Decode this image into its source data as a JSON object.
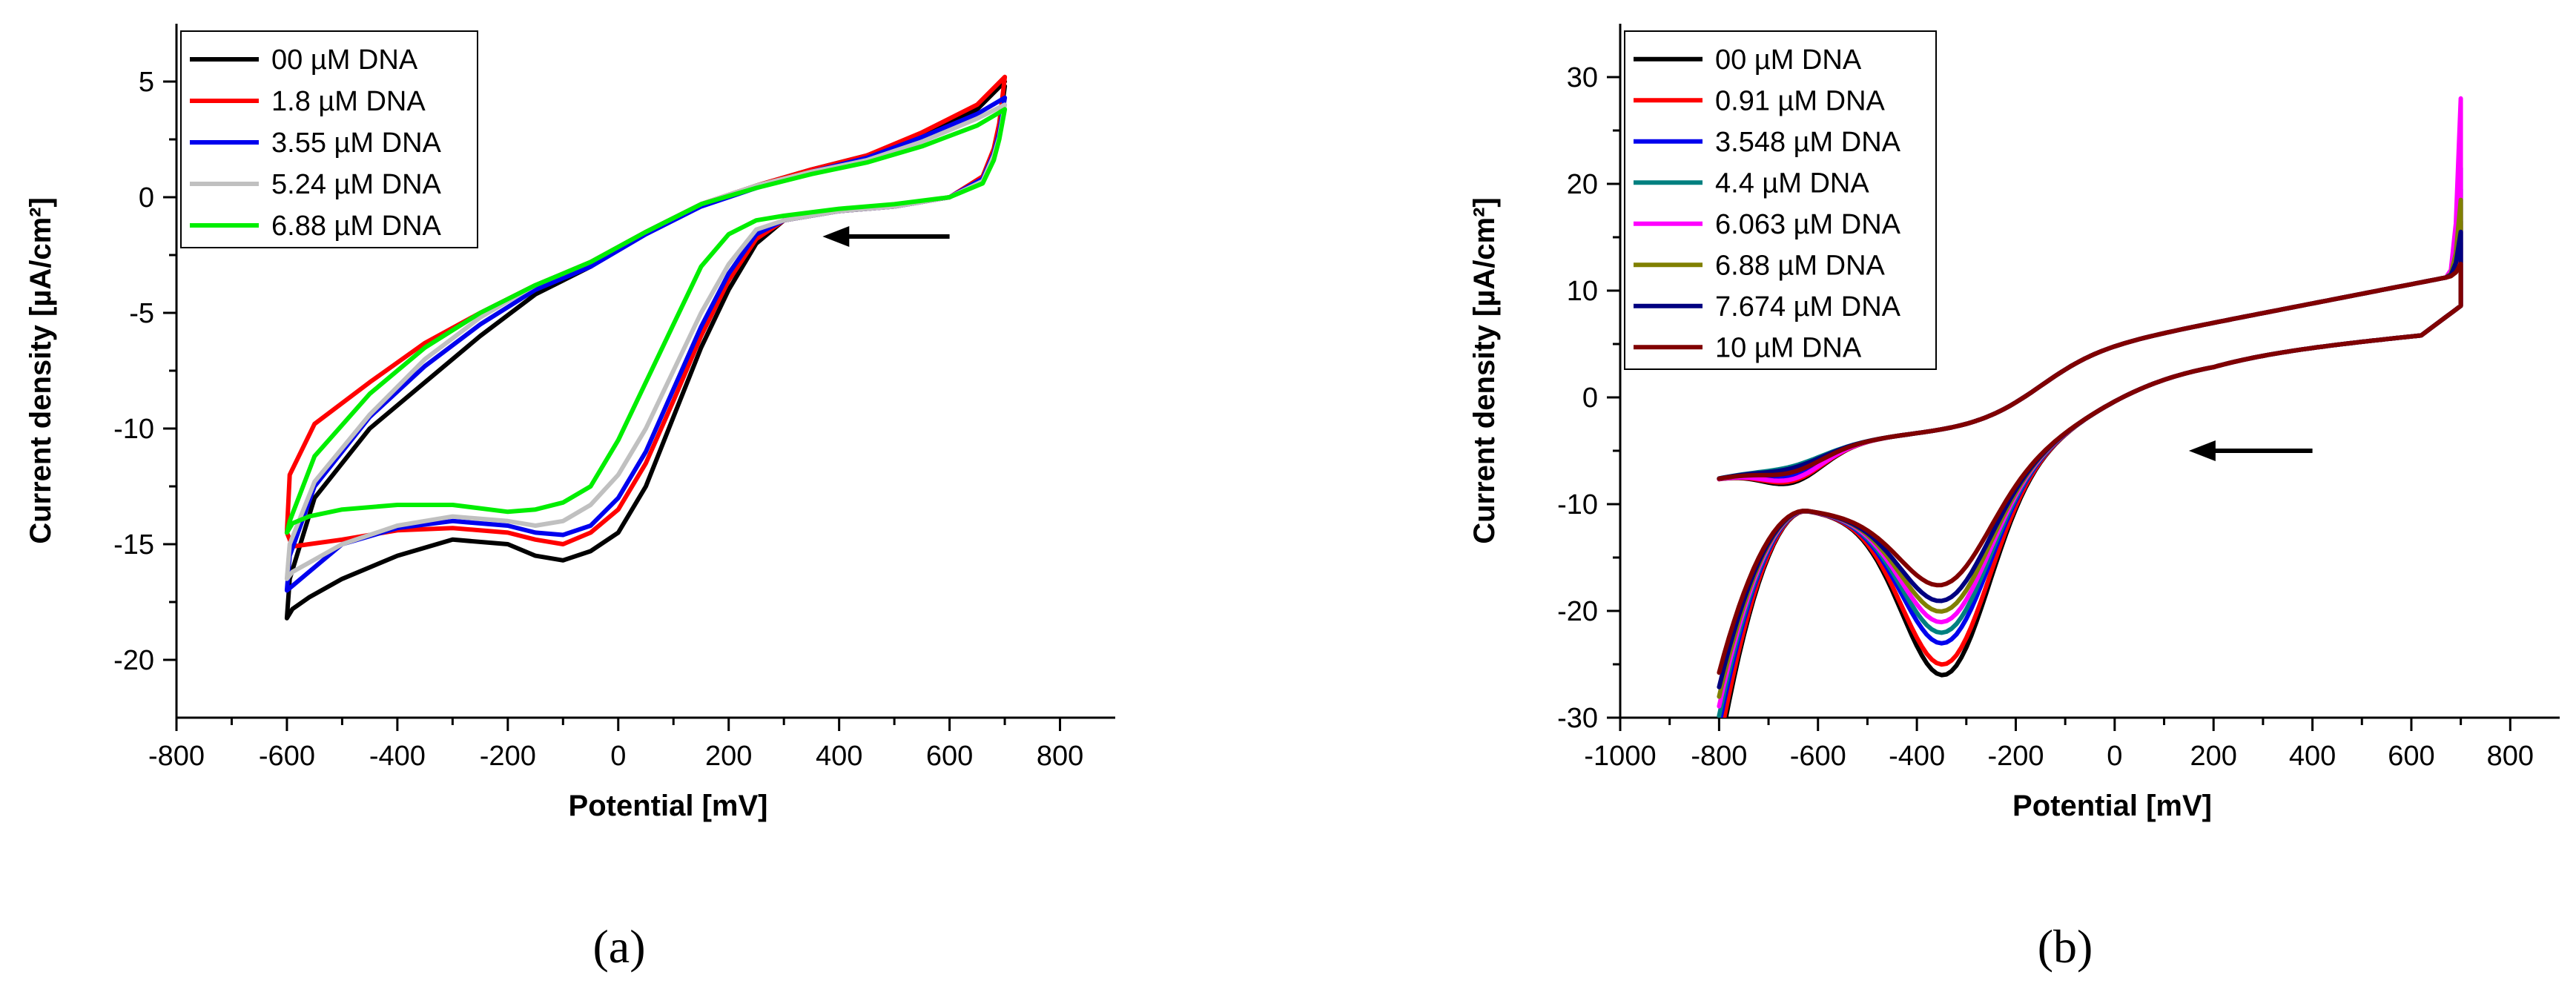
{
  "chart_data": [
    {
      "type": "line",
      "panel_label": "(a)",
      "xlabel": "Potential [mV]",
      "ylabel": "Current density [µA/cm²]",
      "xlim": [
        -800,
        900
      ],
      "ylim": [
        -22.5,
        7.5
      ],
      "xticks": [
        -800,
        -600,
        -400,
        -200,
        0,
        200,
        400,
        600,
        800
      ],
      "xtick_labels": [
        "-800",
        "-600",
        "-400",
        "-200",
        "0",
        "200",
        "400",
        "600",
        "800"
      ],
      "yticks": [
        -20,
        -15,
        -10,
        -5,
        0,
        5
      ],
      "ytick_labels": [
        "-20",
        "-15",
        "-10",
        "-5",
        "0",
        "5"
      ],
      "legend_position": "top-left",
      "arrow_direction": "left",
      "series": [
        {
          "name": "00 µM DNA",
          "color": "#000000",
          "x": [
            700,
            690,
            680,
            660,
            600,
            500,
            400,
            300,
            250,
            200,
            150,
            100,
            50,
            0,
            -50,
            -100,
            -150,
            -200,
            -300,
            -400,
            -500,
            -560,
            -590,
            -600,
            -595,
            -550,
            -450,
            -350,
            -250,
            -150,
            -50,
            50,
            150,
            250,
            350,
            450,
            550,
            650,
            700
          ],
          "y": [
            4.8,
            3,
            2,
            0.8,
            0,
            -0.4,
            -0.6,
            -1,
            -2,
            -4,
            -6.5,
            -9.5,
            -12.5,
            -14.5,
            -15.3,
            -15.7,
            -15.5,
            -15,
            -14.8,
            -15.5,
            -16.5,
            -17.3,
            -17.8,
            -18.2,
            -16.5,
            -13,
            -10,
            -8,
            -6,
            -4.2,
            -3,
            -1.5,
            -0.3,
            0.5,
            1.2,
            1.8,
            2.7,
            3.8,
            5
          ]
        },
        {
          "name": "1.8 µM DNA",
          "color": "#ff0000",
          "x": [
            700,
            690,
            680,
            660,
            600,
            500,
            400,
            300,
            250,
            200,
            150,
            100,
            50,
            0,
            -50,
            -100,
            -150,
            -200,
            -300,
            -400,
            -500,
            -560,
            -590,
            -600,
            -595,
            -550,
            -450,
            -350,
            -250,
            -150,
            -50,
            50,
            150,
            250,
            350,
            450,
            550,
            650,
            700
          ],
          "y": [
            5.2,
            3.2,
            2.1,
            0.9,
            0,
            -0.4,
            -0.6,
            -1,
            -1.8,
            -3.6,
            -6,
            -8.8,
            -11.5,
            -13.5,
            -14.5,
            -15,
            -14.8,
            -14.5,
            -14.3,
            -14.4,
            -14.8,
            -15,
            -15.1,
            -14.5,
            -12,
            -9.8,
            -8,
            -6.3,
            -5,
            -3.8,
            -2.8,
            -1.5,
            -0.3,
            0.5,
            1.2,
            1.8,
            2.8,
            4,
            5.2
          ]
        },
        {
          "name": "3.55 µM DNA",
          "color": "#0000ee",
          "x": [
            700,
            690,
            680,
            660,
            600,
            500,
            400,
            300,
            250,
            200,
            150,
            100,
            50,
            0,
            -50,
            -100,
            -150,
            -200,
            -300,
            -400,
            -500,
            -560,
            -590,
            -600,
            -595,
            -550,
            -450,
            -350,
            -250,
            -150,
            -50,
            50,
            150,
            250,
            350,
            450,
            550,
            650,
            700
          ],
          "y": [
            4.3,
            2.8,
            1.9,
            0.8,
            0,
            -0.4,
            -0.6,
            -1,
            -1.6,
            -3.3,
            -5.6,
            -8.3,
            -11,
            -13,
            -14.2,
            -14.6,
            -14.5,
            -14.2,
            -14,
            -14.3,
            -15,
            -16.2,
            -16.8,
            -17,
            -15.5,
            -12.5,
            -9.5,
            -7.3,
            -5.5,
            -4,
            -3,
            -1.6,
            -0.4,
            0.4,
            1.1,
            1.7,
            2.6,
            3.6,
            4.3
          ]
        },
        {
          "name": "5.24 µM DNA",
          "color": "#c0c0c0",
          "x": [
            700,
            690,
            680,
            660,
            600,
            500,
            400,
            300,
            250,
            200,
            150,
            100,
            50,
            0,
            -50,
            -100,
            -150,
            -200,
            -300,
            -400,
            -500,
            -560,
            -590,
            -600,
            -595,
            -550,
            -450,
            -350,
            -250,
            -150,
            -50,
            50,
            150,
            250,
            350,
            450,
            550,
            650,
            700
          ],
          "y": [
            4,
            2.6,
            1.8,
            0.7,
            0,
            -0.4,
            -0.6,
            -1,
            -1.4,
            -2.9,
            -5,
            -7.5,
            -10,
            -12,
            -13.3,
            -14,
            -14.2,
            -14,
            -13.8,
            -14.2,
            -15,
            -15.8,
            -16.2,
            -16.5,
            -15,
            -12.3,
            -9.4,
            -7,
            -5.2,
            -3.8,
            -2.8,
            -1.5,
            -0.3,
            0.5,
            1.1,
            1.6,
            2.4,
            3.4,
            4
          ]
        },
        {
          "name": "6.88 µM DNA",
          "color": "#00ee00",
          "x": [
            700,
            690,
            680,
            660,
            600,
            500,
            400,
            300,
            250,
            200,
            150,
            100,
            50,
            0,
            -50,
            -100,
            -150,
            -200,
            -300,
            -400,
            -500,
            -560,
            -590,
            -600,
            -595,
            -550,
            -450,
            -350,
            -250,
            -150,
            -50,
            50,
            150,
            250,
            350,
            450,
            550,
            650,
            700
          ],
          "y": [
            3.8,
            2.5,
            1.6,
            0.6,
            0,
            -0.3,
            -0.5,
            -0.8,
            -1,
            -1.6,
            -3,
            -5.5,
            -8,
            -10.5,
            -12.5,
            -13.2,
            -13.5,
            -13.6,
            -13.3,
            -13.3,
            -13.5,
            -13.8,
            -14.1,
            -14.5,
            -14,
            -11.2,
            -8.5,
            -6.5,
            -5,
            -3.8,
            -2.8,
            -1.5,
            -0.3,
            0.4,
            1,
            1.5,
            2.2,
            3.1,
            3.8
          ]
        }
      ]
    },
    {
      "type": "line",
      "panel_label": "(b)",
      "xlabel": "Potential [mV]",
      "ylabel": "Current density [µA/cm²]",
      "xlim": [
        -1000,
        900
      ],
      "ylim": [
        -30,
        35
      ],
      "xticks": [
        -1000,
        -800,
        -600,
        -400,
        -200,
        0,
        200,
        400,
        600,
        800
      ],
      "xtick_labels": [
        "-1000",
        "-800",
        "-600",
        "-400",
        "-200",
        "0",
        "200",
        "400",
        "600",
        "800"
      ],
      "yticks": [
        -30,
        -20,
        -10,
        0,
        10,
        20,
        30
      ],
      "ytick_labels": [
        "-30",
        "-20",
        "-10",
        "0",
        "10",
        "20",
        "30"
      ],
      "legend_position": "top-left",
      "arrow_direction": "left",
      "series": [
        {
          "name": "00 µM DNA",
          "color": "#000000",
          "peak": 26,
          "return_min": 3.8,
          "spike": 16
        },
        {
          "name": "0.91 µM DNA",
          "color": "#ff0000",
          "peak": 25,
          "return_min": 3.5,
          "spike": 14
        },
        {
          "name": "3.548 µM DNA",
          "color": "#0000ee",
          "peak": 23,
          "return_min": 2.5,
          "spike": 21
        },
        {
          "name": "4.4 µM DNA",
          "color": "#008080",
          "peak": 22,
          "return_min": 1,
          "spike": 19
        },
        {
          "name": "6.063 µM DNA",
          "color": "#ff00ff",
          "peak": 21,
          "return_min": 3.2,
          "spike": 27.5
        },
        {
          "name": "6.88 µM DNA",
          "color": "#808000",
          "peak": 20,
          "return_min": 1.8,
          "spike": 18
        },
        {
          "name": "7.674 µM DNA",
          "color": "#000080",
          "peak": 19,
          "return_min": 1.3,
          "spike": 15
        },
        {
          "name": "10 µM DNA",
          "color": "#800000",
          "peak": 17.5,
          "return_min": 2,
          "spike": 12
        }
      ]
    }
  ]
}
